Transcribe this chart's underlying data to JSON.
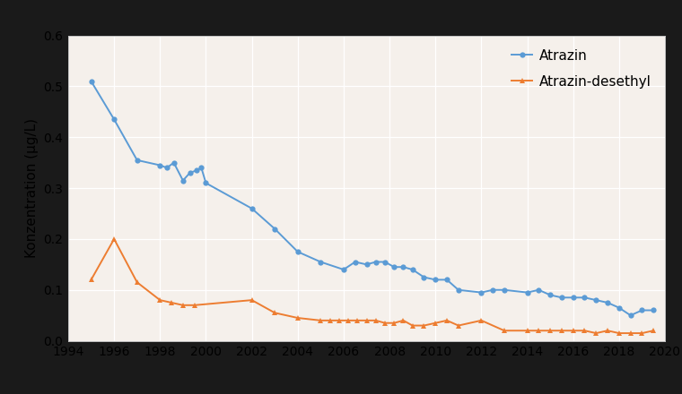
{
  "atrazin_x": [
    1995,
    1996,
    1997,
    1998,
    1998.3,
    1998.6,
    1999,
    1999.3,
    1999.6,
    1999.8,
    2000,
    2002,
    2003,
    2004,
    2005,
    2006,
    2006.5,
    2007,
    2007.4,
    2007.8,
    2008.2,
    2008.6,
    2009,
    2009.5,
    2010,
    2010.5,
    2011,
    2012,
    2012.5,
    2013,
    2014,
    2014.5,
    2015,
    2015.5,
    2016,
    2016.5,
    2017,
    2017.5,
    2018,
    2018.5,
    2019,
    2019.5
  ],
  "atrazin_y": [
    0.51,
    0.435,
    0.355,
    0.345,
    0.34,
    0.35,
    0.315,
    0.33,
    0.335,
    0.34,
    0.31,
    0.26,
    0.22,
    0.175,
    0.155,
    0.14,
    0.155,
    0.15,
    0.155,
    0.155,
    0.145,
    0.145,
    0.14,
    0.125,
    0.12,
    0.12,
    0.1,
    0.095,
    0.1,
    0.1,
    0.095,
    0.1,
    0.09,
    0.085,
    0.085,
    0.085,
    0.08,
    0.075,
    0.065,
    0.05,
    0.06,
    0.06
  ],
  "desethyl_x": [
    1995,
    1996,
    1997,
    1998,
    1998.5,
    1999,
    1999.5,
    2002,
    2003,
    2004,
    2005,
    2005.4,
    2005.8,
    2006.2,
    2006.6,
    2007,
    2007.4,
    2007.8,
    2008.2,
    2008.6,
    2009,
    2009.5,
    2010,
    2010.5,
    2011,
    2012,
    2013,
    2014,
    2014.5,
    2015,
    2015.5,
    2016,
    2016.5,
    2017,
    2017.5,
    2018,
    2018.5,
    2019,
    2019.5
  ],
  "desethyl_y": [
    0.12,
    0.2,
    0.115,
    0.08,
    0.075,
    0.07,
    0.07,
    0.08,
    0.055,
    0.045,
    0.04,
    0.04,
    0.04,
    0.04,
    0.04,
    0.04,
    0.04,
    0.035,
    0.035,
    0.04,
    0.03,
    0.03,
    0.035,
    0.04,
    0.03,
    0.04,
    0.02,
    0.02,
    0.02,
    0.02,
    0.02,
    0.02,
    0.02,
    0.015,
    0.02,
    0.015,
    0.015,
    0.015,
    0.02
  ],
  "atrazin_color": "#5b9bd5",
  "desethyl_color": "#ed7d31",
  "ylabel": "Konzentration (µg/L)",
  "ylim": [
    0.0,
    0.6
  ],
  "xlim": [
    1994,
    2020
  ],
  "xticks": [
    1994,
    1996,
    1998,
    2000,
    2002,
    2004,
    2006,
    2008,
    2010,
    2012,
    2014,
    2016,
    2018,
    2020
  ],
  "yticks": [
    0.0,
    0.1,
    0.2,
    0.3,
    0.4,
    0.5,
    0.6
  ],
  "legend_atrazin": "Atrazin",
  "legend_desethyl": "Atrazin-desethyl",
  "plot_bg_color": "#f5f0eb",
  "outer_bg_color": "#1a1a1a",
  "marker_size": 4.5,
  "line_width": 1.4
}
